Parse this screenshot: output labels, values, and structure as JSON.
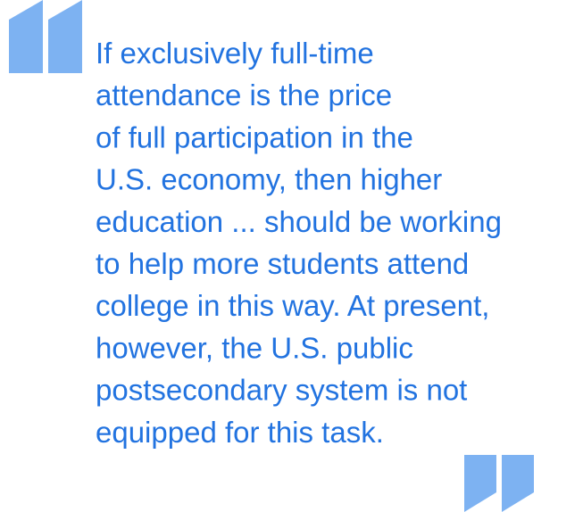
{
  "quote": {
    "lines": [
      "If exclusively full-time",
      "attendance is the price",
      "of full participation in the",
      "U.S. economy, then higher",
      "education ... should be working",
      "to help more students attend",
      "college in this way. At present,",
      "however, the U.S. public",
      "postsecondary system is not",
      "equipped for this task."
    ]
  }
}
